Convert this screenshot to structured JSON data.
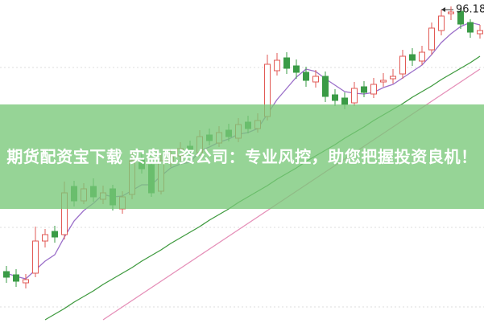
{
  "chart_data": {
    "type": "candlestick",
    "title": "期货配资宝下载 实盘配资公司：专业风控，助您把握投资良机！",
    "annotation": "96.18",
    "up_color": "#e25a55",
    "down_color": "#3a9b46",
    "ylim": [
      59.8,
      100
    ],
    "categories": [
      null,
      null,
      null,
      null,
      null,
      null,
      null,
      null,
      null,
      null,
      null,
      null,
      null,
      null,
      null,
      null,
      null,
      null,
      null,
      null,
      null,
      null,
      null,
      null,
      null,
      null,
      null,
      null,
      null,
      null,
      null,
      null,
      null,
      null,
      null,
      null,
      null,
      null,
      null,
      null,
      null,
      null,
      null,
      null,
      null,
      null,
      null,
      null,
      null,
      null
    ],
    "open": [
      66.2,
      65.8,
      64.8,
      66.0,
      70.0,
      71.2,
      70.8,
      76.8,
      75.0,
      76.8,
      75.2,
      76.5,
      74.0,
      75.8,
      80.2,
      79.5,
      76.2,
      79.8,
      80.6,
      81.8,
      81.0,
      83.2,
      82.2,
      83.8,
      82.8,
      84.8,
      84.0,
      85.5,
      91.2,
      92.8,
      91.8,
      91.0,
      89.8,
      90.5,
      88.2,
      87.8,
      87.2,
      89.2,
      88.3,
      89.8,
      90.2,
      90.8,
      93.2,
      92.4,
      93.8,
      96.2,
      98.3,
      98.6,
      97.2,
      95.8
    ],
    "high": [
      66.9,
      66.5,
      65.9,
      71.8,
      71.5,
      71.9,
      77.4,
      77.5,
      77.2,
      77.8,
      76.9,
      77.0,
      76.2,
      81.0,
      80.9,
      80.1,
      80.8,
      81.3,
      82.3,
      82.5,
      83.8,
      84.0,
      84.3,
      84.6,
      85.3,
      85.6,
      85.9,
      93.2,
      93.4,
      93.5,
      92.6,
      91.7,
      91.3,
      91.1,
      88.9,
      88.5,
      89.8,
      89.9,
      90.3,
      90.9,
      91.4,
      93.8,
      94.0,
      94.3,
      97.2,
      98.8,
      99.2,
      99.0,
      97.6,
      96.9
    ],
    "low": [
      64.8,
      64.3,
      64.1,
      65.5,
      69.2,
      69.8,
      70.2,
      74.3,
      74.6,
      74.9,
      74.6,
      73.8,
      73.4,
      75.2,
      78.4,
      75.5,
      75.8,
      79.2,
      80.0,
      80.4,
      80.6,
      81.9,
      81.7,
      82.4,
      82.3,
      83.4,
      83.5,
      85.0,
      90.6,
      90.8,
      90.2,
      89.2,
      89.1,
      87.3,
      86.8,
      86.4,
      86.8,
      87.9,
      87.8,
      89.2,
      89.6,
      90.2,
      91.8,
      91.9,
      93.2,
      95.6,
      97.5,
      96.4,
      95.3,
      95.2
    ],
    "close": [
      65.5,
      65.0,
      65.2,
      70.0,
      70.8,
      70.5,
      76.0,
      75.0,
      76.5,
      75.5,
      76.0,
      74.5,
      75.5,
      80.0,
      79.0,
      76.0,
      80.0,
      80.5,
      81.5,
      81.0,
      83.0,
      82.5,
      83.5,
      83.0,
      84.5,
      84.0,
      85.0,
      92.0,
      92.5,
      91.5,
      91.0,
      90.0,
      90.5,
      88.0,
      87.5,
      87.0,
      89.0,
      88.5,
      89.5,
      90.0,
      90.5,
      93.0,
      92.5,
      93.5,
      96.5,
      98.0,
      98.5,
      97.0,
      96.0,
      96.2
    ],
    "series": [
      {
        "color": "#9b6fc9",
        "values": [
          66.0,
          65.6,
          65.3,
          66.4,
          67.5,
          68.3,
          70.5,
          72.5,
          73.8,
          74.7,
          75.8,
          75.5,
          75.6,
          76.3,
          77.0,
          77.0,
          78.1,
          79.1,
          79.6,
          79.8,
          81.2,
          81.7,
          82.3,
          82.7,
          83.3,
          83.5,
          84.0,
          85.8,
          87.6,
          89.0,
          90.4,
          91.4,
          91.1,
          90.2,
          89.4,
          88.6,
          88.4,
          88.3,
          88.5,
          89.1,
          89.5,
          90.3,
          91.1,
          91.9,
          93.2,
          94.7,
          95.8,
          96.7,
          97.2,
          96.9
        ]
      },
      {
        "color": "#3f9a3f",
        "values": [
          null,
          null,
          null,
          null,
          60.2,
          60.9,
          61.6,
          62.4,
          63.1,
          63.8,
          64.6,
          65.3,
          66.0,
          66.7,
          67.5,
          68.2,
          68.9,
          69.7,
          70.4,
          71.1,
          71.8,
          72.6,
          73.3,
          74.0,
          74.8,
          75.5,
          76.2,
          76.9,
          77.7,
          78.4,
          79.1,
          79.9,
          80.6,
          81.3,
          82.0,
          82.8,
          83.5,
          84.2,
          85.0,
          85.7,
          86.4,
          87.1,
          87.9,
          88.6,
          89.3,
          90.1,
          90.8,
          91.5,
          92.2,
          93.0
        ]
      },
      {
        "color": "#e58fb8",
        "values": [
          null,
          null,
          null,
          null,
          null,
          null,
          null,
          null,
          null,
          null,
          60.2,
          61.0,
          61.8,
          62.6,
          63.4,
          64.2,
          65.0,
          65.8,
          66.6,
          67.4,
          68.2,
          69.0,
          69.8,
          70.6,
          71.4,
          72.2,
          73.0,
          73.8,
          74.6,
          75.4,
          76.2,
          77.0,
          77.8,
          78.6,
          79.4,
          80.2,
          81.0,
          81.8,
          82.6,
          83.4,
          84.2,
          85.0,
          85.8,
          86.6,
          87.4,
          88.2,
          89.0,
          89.8,
          90.6,
          91.4
        ]
      }
    ]
  }
}
